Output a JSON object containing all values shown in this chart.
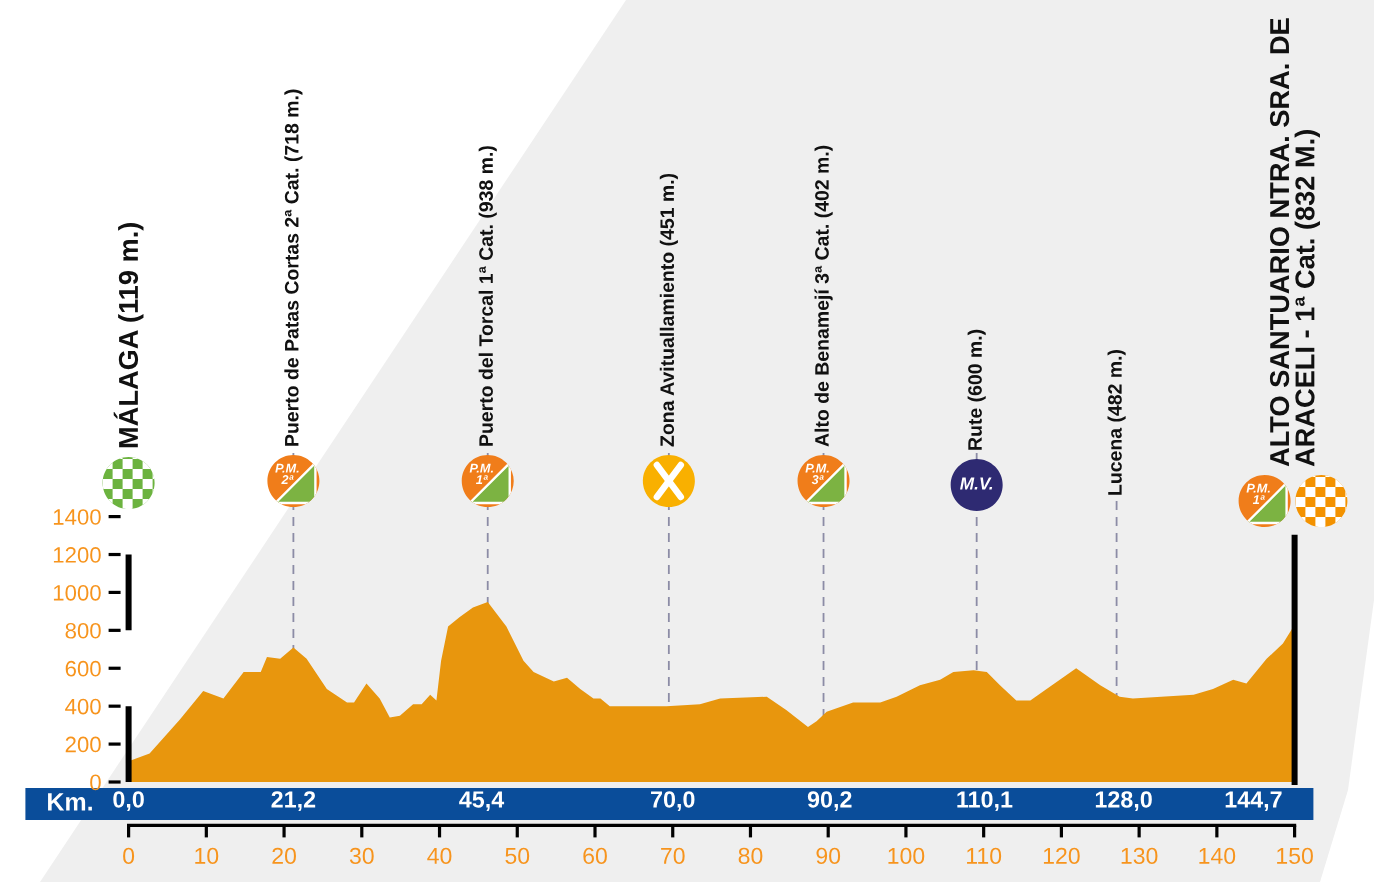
{
  "chart_data": {
    "type": "area",
    "x": [
      0,
      2.7,
      6.6,
      9.6,
      12.2,
      14.8,
      17.0,
      17.8,
      19.5,
      21.2,
      22.9,
      25.5,
      28.1,
      29.0,
      30.6,
      32.3,
      33.6,
      34.9,
      36.6,
      37.7,
      38.8,
      39.6,
      40.2,
      41.1,
      42.6,
      44.3,
      46.2,
      48.6,
      50.8,
      52.1,
      54.7,
      56.4,
      58.1,
      59.8,
      60.7,
      61.9,
      69.2,
      73.5,
      76.1,
      82.1,
      84.6,
      87.4,
      88.5,
      89.8,
      93.2,
      96.7,
      98.8,
      101.8,
      104.4,
      106.1,
      108.7,
      110.4,
      112.1,
      114.2,
      116.0,
      118.1,
      121.9,
      125.0,
      127.5,
      129.2,
      137.0,
      139.5,
      142.1,
      143.8,
      146.4,
      148.5,
      150
    ],
    "series": [
      {
        "color": "#e8960d",
        "values": [
          110,
          150,
          330,
          480,
          440,
          580,
          580,
          660,
          650,
          710,
          650,
          490,
          420,
          420,
          520,
          440,
          340,
          350,
          410,
          410,
          460,
          430,
          640,
          820,
          870,
          920,
          950,
          820,
          640,
          580,
          530,
          550,
          490,
          440,
          440,
          400,
          400,
          410,
          440,
          450,
          380,
          290,
          320,
          370,
          420,
          420,
          450,
          510,
          540,
          580,
          590,
          580,
          510,
          430,
          430,
          490,
          600,
          510,
          450,
          440,
          460,
          490,
          540,
          520,
          650,
          730,
          830
        ]
      }
    ],
    "xlim": [
      0,
      150
    ],
    "xticks": [
      0,
      10,
      20,
      30,
      40,
      50,
      60,
      70,
      80,
      90,
      100,
      110,
      120,
      130,
      140,
      150
    ],
    "ylim": [
      0,
      1400
    ],
    "yticks": [
      0,
      200,
      400,
      600,
      800,
      1000,
      1200,
      1400
    ],
    "x2label": "Km.",
    "x2lim": [
      0,
      150
    ],
    "x2ticks": [
      {
        "value": 0,
        "label": "0,0"
      },
      {
        "value": 21.2,
        "label": "21,2"
      },
      {
        "value": 45.4,
        "label": "45,4"
      },
      {
        "value": 70.0,
        "label": "70,0"
      },
      {
        "value": 90.2,
        "label": "90,2"
      },
      {
        "value": 110.1,
        "label": "110,1"
      },
      {
        "value": 128.0,
        "label": "128,0"
      },
      {
        "value": 144.7,
        "label": "144,7"
      }
    ],
    "ref_lines": [
      {
        "axis": "x",
        "value": 0,
        "label": "MÁLAGA (119 m.)",
        "color": "#000000",
        "line_style": "dashed"
      },
      {
        "axis": "x",
        "value": 21.2,
        "label": "Puerto de Patas Cortas 2ª Cat. (718 m.)",
        "color": "#8c8ca6",
        "line_style": "dashed"
      },
      {
        "axis": "x",
        "value": 46.2,
        "label": "Puerto del Torcal 1ª Cat. (938 m.)",
        "color": "#8c8ca6",
        "line_style": "dashed"
      },
      {
        "axis": "x",
        "value": 69.5,
        "label": "Zona Avituallamiento (451 m.)",
        "color": "#8c8ca6",
        "line_style": "dashed"
      },
      {
        "axis": "x",
        "value": 89.4,
        "label": "Alto de Benamejí 3ª Cat. (402 m.)",
        "color": "#8c8ca6",
        "line_style": "dashed"
      },
      {
        "axis": "x",
        "value": 109.1,
        "label": "Rute (600 m.)",
        "color": "#8c8ca6",
        "line_style": "dashed"
      },
      {
        "axis": "x",
        "value": 127.1,
        "label": "Lucena (482 m.)",
        "color": "#8c8ca6",
        "line_style": "dashed"
      },
      {
        "axis": "x",
        "value": 150,
        "label": "ALTO SANTUARIO NTRA. SRA. DE\nARACELI - 1ª Cat. (832 M.)",
        "color": "#000000",
        "line_style": "solid"
      }
    ],
    "annotations": [
      "P.M.\n2ª",
      "P.M.\n1ª",
      "P.M.\n3ª",
      "M.V.",
      "P.M.\n1ª"
    ],
    "grid": false
  }
}
